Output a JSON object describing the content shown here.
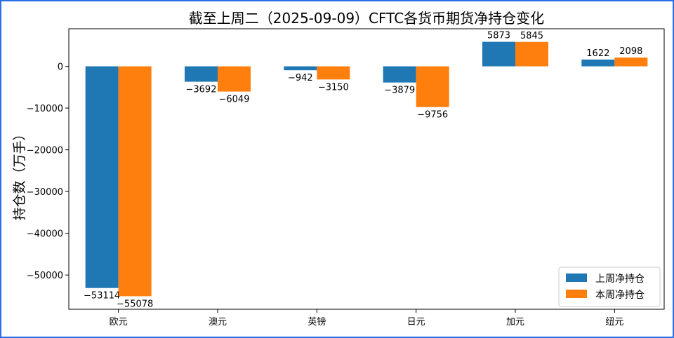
{
  "chart_data": {
    "type": "bar",
    "title": "截至上周二（2025-09-09）CFTC各货币期货净持仓变化",
    "xlabel": "",
    "ylabel": "持仓数（万手）",
    "categories": [
      "欧元",
      "澳元",
      "英镑",
      "日元",
      "加元",
      "纽元"
    ],
    "series": [
      {
        "name": "上周净持仓",
        "color": "#1f77b4",
        "values": [
          -53114,
          -3692,
          -942,
          -3879,
          5873,
          1622
        ]
      },
      {
        "name": "本周净持仓",
        "color": "#ff7f0e",
        "values": [
          -55078,
          -6049,
          -3150,
          -9756,
          5845,
          2098
        ]
      }
    ],
    "ylim": [
      -58200,
      9000
    ],
    "yticks": [
      0,
      -10000,
      -20000,
      -30000,
      -40000,
      -50000
    ],
    "ytick_labels": [
      "0",
      "−10000",
      "−20000",
      "−30000",
      "−40000",
      "−50000"
    ],
    "grid": false,
    "legend": "lower-right"
  }
}
